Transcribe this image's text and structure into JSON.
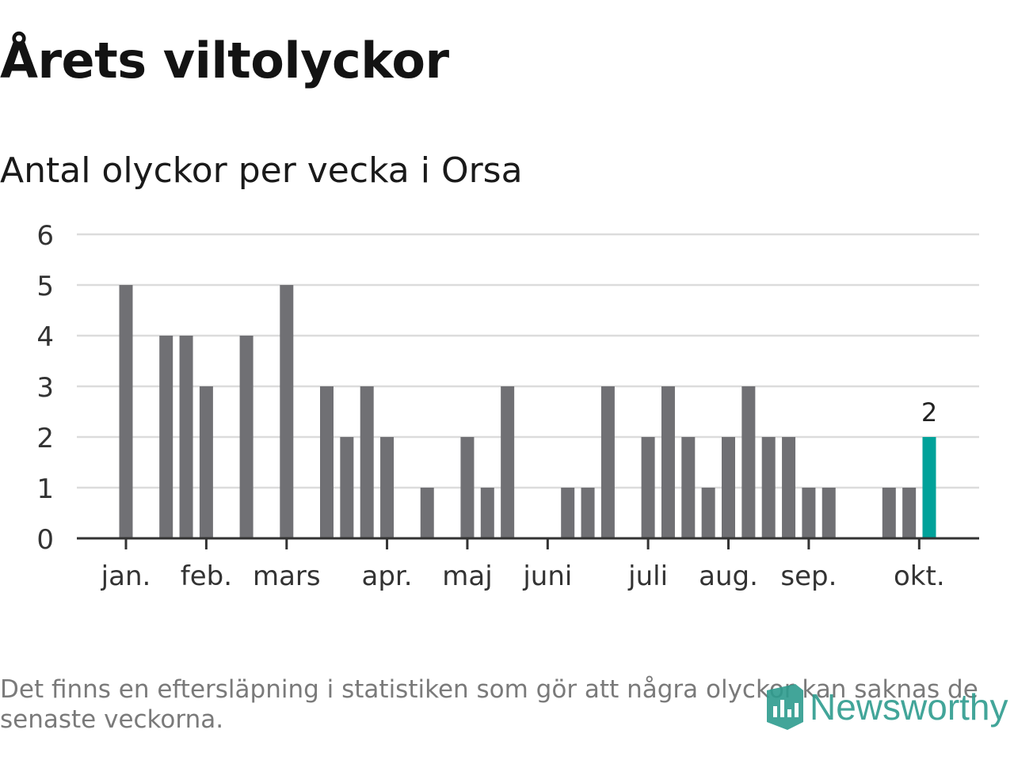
{
  "header": {
    "title": "Årets viltolyckor",
    "subtitle": "Antal olyckor per vecka i Orsa"
  },
  "footnote": "Det finns en eftersläpning i statistiken som gör att några olyckor kan saknas de senaste veckorna.",
  "logo": {
    "text": "Newsworthy",
    "icon": "newsworthy-bar-icon"
  },
  "colors": {
    "bar": "#707074",
    "highlight": "#00a29a",
    "grid": "#dcdcdc",
    "axis": "#333333",
    "brand": "#2e9c8e"
  },
  "chart_data": {
    "type": "bar",
    "ylim": [
      0,
      6
    ],
    "yticks": [
      0,
      1,
      2,
      3,
      4,
      5,
      6
    ],
    "grid": true,
    "week_values": [
      5,
      0,
      4,
      4,
      3,
      0,
      4,
      0,
      5,
      0,
      3,
      2,
      3,
      2,
      0,
      1,
      0,
      2,
      1,
      3,
      0,
      0,
      1,
      1,
      3,
      0,
      2,
      3,
      2,
      1,
      2,
      3,
      2,
      2,
      1,
      1,
      0,
      0,
      1,
      1,
      2
    ],
    "highlight": {
      "index": 40,
      "label": "2"
    },
    "month_labels": [
      "jan.",
      "feb.",
      "mars",
      "apr.",
      "maj",
      "juni",
      "juli",
      "aug.",
      "sep.",
      "okt."
    ],
    "month_positions": [
      0,
      4,
      8,
      13,
      17,
      21,
      26,
      30,
      34,
      39.5
    ]
  }
}
